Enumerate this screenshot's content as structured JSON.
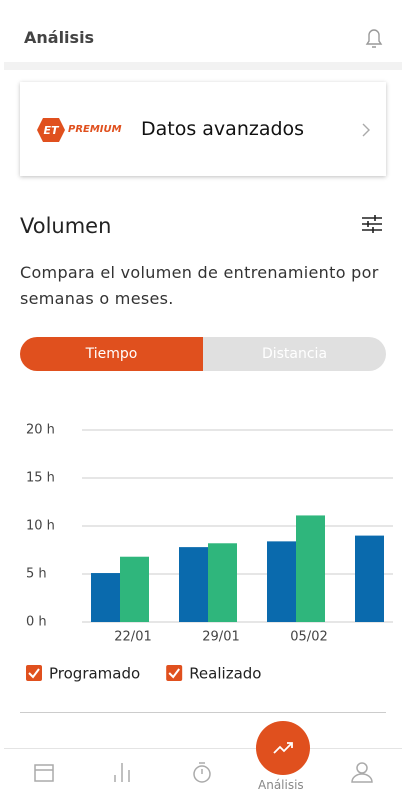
{
  "header": {
    "title": "Análisis"
  },
  "premium_card": {
    "badge": "PREMIUM",
    "title": "Datos avanzados"
  },
  "section": {
    "title": "Volumen",
    "description": "Compara el volumen de entrenamiento por semanas o meses."
  },
  "toggle": {
    "options": [
      "Tiempo",
      "Distancia"
    ]
  },
  "chart_data": {
    "type": "bar",
    "categories": [
      "22/01",
      "29/01",
      "05/02",
      null
    ],
    "series": [
      {
        "name": "Programado",
        "color": "#0a6aad",
        "values": [
          5.1,
          7.8,
          8.4,
          9.0
        ]
      },
      {
        "name": "Realizado",
        "color": "#2fb67c",
        "values": [
          6.8,
          8.2,
          11.1,
          null
        ]
      }
    ],
    "ylim": [
      0,
      20
    ],
    "yticks": [
      {
        "value": 0,
        "label": "0 h"
      },
      {
        "value": 5,
        "label": "5 h"
      },
      {
        "value": 10,
        "label": "10 h"
      },
      {
        "value": 15,
        "label": "15 h"
      },
      {
        "value": 20,
        "label": "20 h"
      }
    ],
    "grid": true
  },
  "nav": {
    "active_label": "Análisis"
  }
}
